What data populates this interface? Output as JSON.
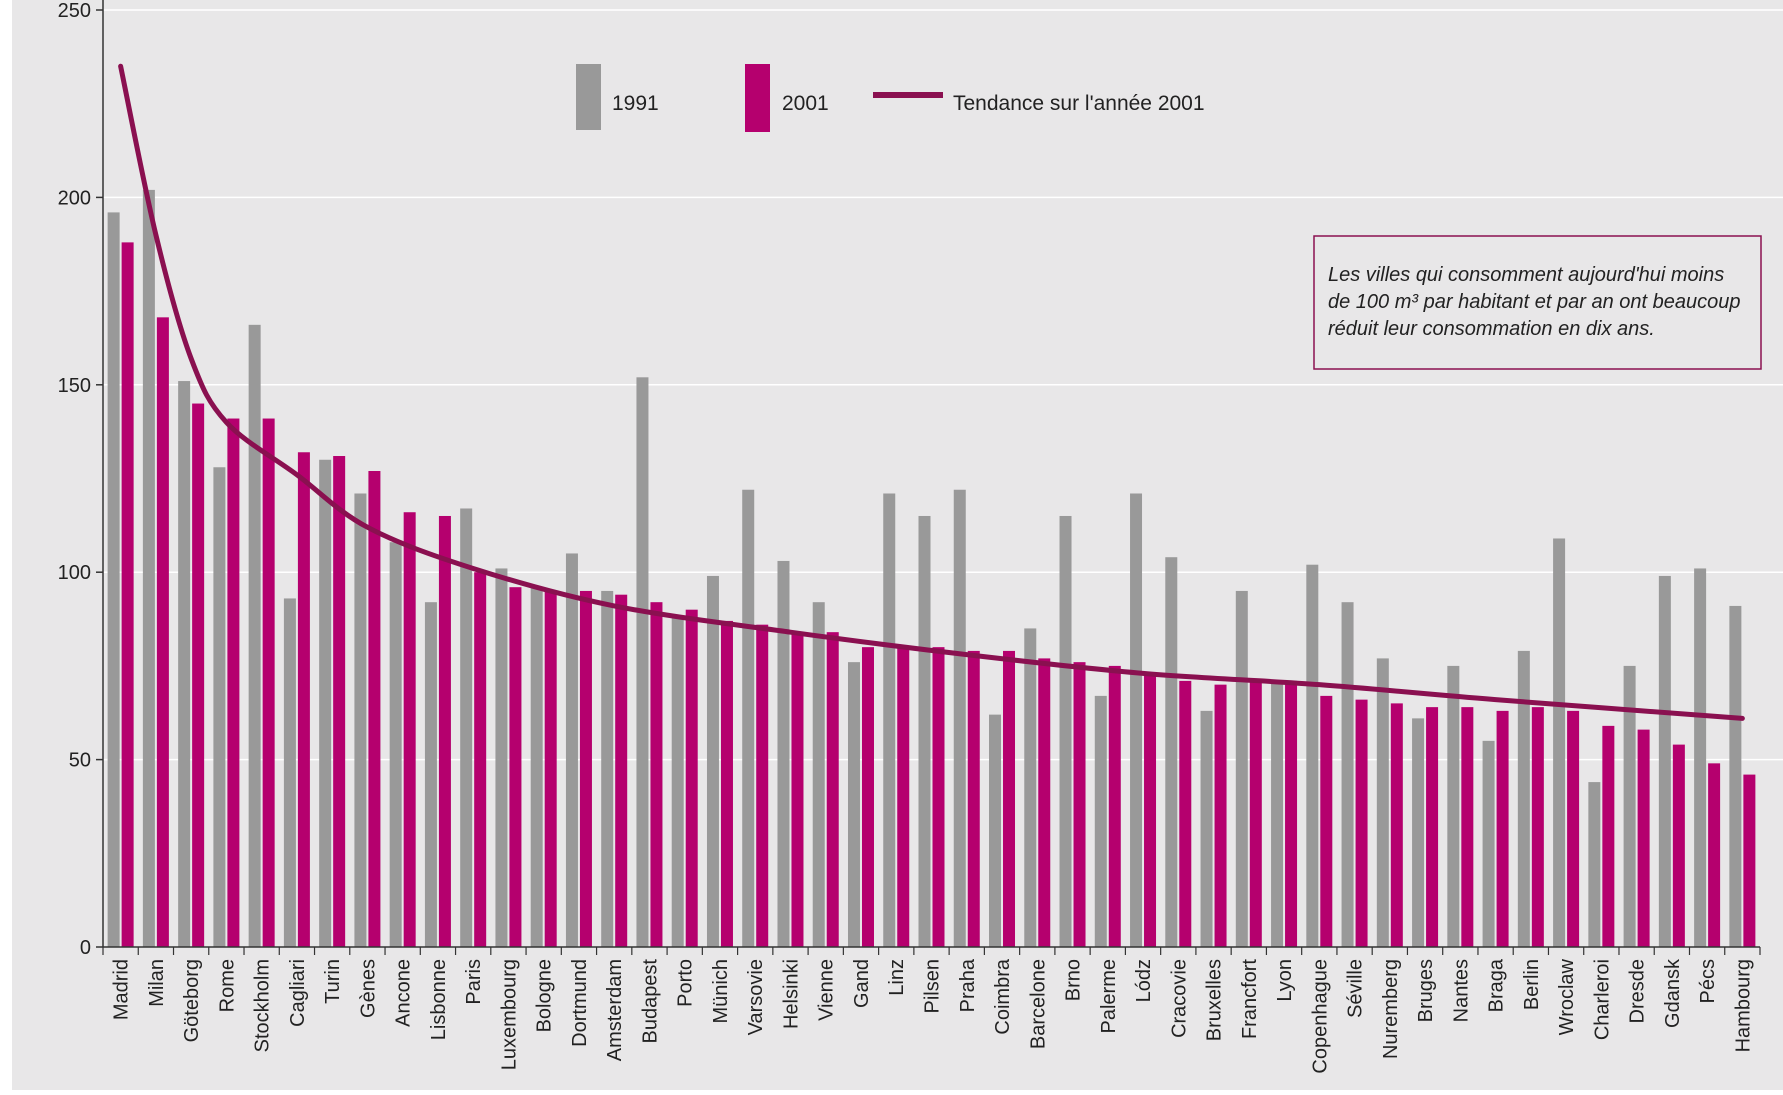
{
  "chart_data": {
    "type": "bar",
    "title": "",
    "xlabel": "",
    "ylabel": "",
    "ylim": [
      0,
      250
    ],
    "yticks": [
      0,
      50,
      100,
      150,
      200,
      250
    ],
    "grid": true,
    "legend": {
      "placement": "top",
      "entries": [
        {
          "label": "1991",
          "kind": "bar",
          "color": "#999999"
        },
        {
          "label": "2001",
          "kind": "bar",
          "color": "#b5006e"
        },
        {
          "label": "Tendance sur l'année 2001",
          "kind": "line",
          "color": "#8a1050"
        }
      ]
    },
    "categories": [
      "Madrid",
      "Milan",
      "Göteborg",
      "Rome",
      "Stockholm",
      "Cagliari",
      "Turin",
      "Gènes",
      "Ancone",
      "Lisbonne",
      "Paris",
      "Luxembourg",
      "Bologne",
      "Dortmund",
      "Amsterdam",
      "Budapest",
      "Porto",
      "Münich",
      "Varsovie",
      "Helsinki",
      "Vienne",
      "Gand",
      "Linz",
      "Pilsen",
      "Praha",
      "Coimbra",
      "Barcelone",
      "Brno",
      "Palerme",
      "Lódz",
      "Cracovie",
      "Bruxelles",
      "Francfort",
      "Lyon",
      "Copenhague",
      "Séville",
      "Nuremberg",
      "Bruges",
      "Nantes",
      "Braga",
      "Berlin",
      "Wroclaw",
      "Charleroi",
      "Dresde",
      "Gdansk",
      "Pécs",
      "Hambourg"
    ],
    "highlight_category": {
      "name": "Paris",
      "color": "#c4006e"
    },
    "series": [
      {
        "name": "1991",
        "color": "#999999",
        "values": [
          196,
          202,
          151,
          128,
          166,
          93,
          130,
          121,
          108,
          92,
          117,
          101,
          96,
          105,
          95,
          152,
          88,
          99,
          122,
          103,
          92,
          76,
          121,
          115,
          122,
          62,
          85,
          115,
          67,
          121,
          104,
          63,
          95,
          71,
          102,
          92,
          77,
          61,
          75,
          55,
          79,
          109,
          44,
          75,
          99,
          101,
          91
        ]
      },
      {
        "name": "2001",
        "color": "#b5006e",
        "values": [
          188,
          168,
          145,
          141,
          141,
          132,
          131,
          127,
          116,
          115,
          100,
          96,
          95,
          95,
          94,
          92,
          90,
          87,
          86,
          84,
          84,
          80,
          80,
          80,
          79,
          79,
          77,
          76,
          75,
          73,
          71,
          70,
          71,
          71,
          67,
          66,
          65,
          64,
          64,
          63,
          64,
          63,
          59,
          58,
          54,
          49,
          46
        ]
      }
    ],
    "trend": {
      "name": "Tendance sur l'année 2001",
      "type": "power",
      "color": "#8a1050",
      "points": [
        [
          1,
          235
        ],
        [
          2,
          190
        ],
        [
          3,
          157
        ],
        [
          4,
          140
        ],
        [
          6,
          126
        ],
        [
          8,
          112
        ],
        [
          11,
          101
        ],
        [
          15,
          91
        ],
        [
          20,
          84
        ],
        [
          25,
          78
        ],
        [
          30,
          73
        ],
        [
          35,
          70
        ],
        [
          40,
          66
        ],
        [
          47,
          61
        ]
      ]
    },
    "annotation": {
      "lines": [
        "Les villes qui consomment aujourd'hui moins",
        "de 100 m³ par habitant et par an ont beaucoup",
        "réduit leur consommation en dix ans."
      ],
      "border_color": "#8a1050"
    }
  }
}
